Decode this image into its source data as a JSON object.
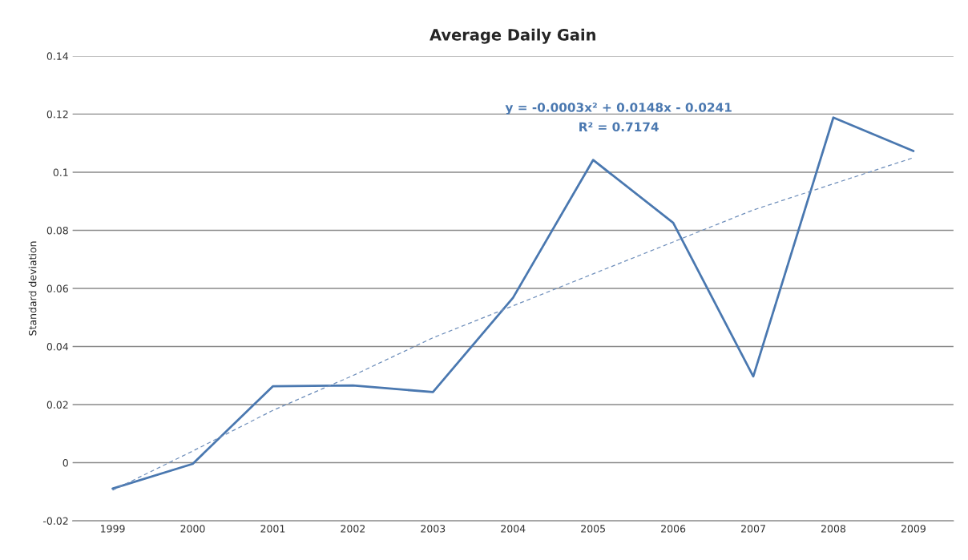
{
  "chart_data": {
    "type": "line",
    "title": "Average Daily Gain",
    "ylabel": "Standard deviation",
    "categories": [
      "1999",
      "2000",
      "2001",
      "2002",
      "2003",
      "2004",
      "2005",
      "2006",
      "2007",
      "2008",
      "2009"
    ],
    "series": [
      {
        "color": "#4a78b0",
        "line_style": "solid",
        "values": [
          -0.0089,
          -0.0004,
          0.0263,
          0.0266,
          0.0243,
          0.0568,
          0.1042,
          0.0826,
          0.0297,
          0.1188,
          0.1073
        ]
      },
      {
        "color": "#6f8fbb",
        "line_style": "dashed",
        "values": [
          -0.0095,
          0.004,
          0.018,
          0.03,
          0.043,
          0.054,
          0.065,
          0.076,
          0.087,
          0.096,
          0.105
        ]
      }
    ],
    "ylim": [
      -0.02,
      0.14
    ],
    "yticks": [
      -0.02,
      0,
      0.02,
      0.04,
      0.06,
      0.08,
      0.1,
      0.12,
      0.14
    ],
    "grid": "y",
    "legend": false,
    "annotations": [
      "y = -0.0003x² + 0.0148x - 0.0241",
      "R² = 0.7174"
    ]
  }
}
